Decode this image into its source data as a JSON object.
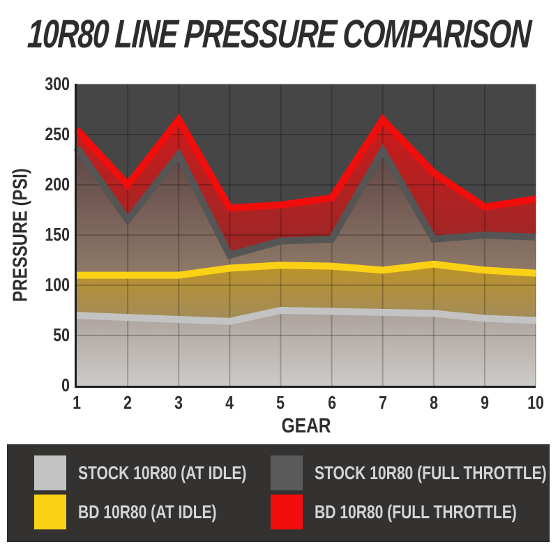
{
  "title": "10R80 LINE PRESSURE COMPARISON",
  "colors": {
    "title_text": "#2d2d2d",
    "plot_bg": "#464646",
    "grid": "rgba(0,0,0,0.22)",
    "axis": "#1f1f1f",
    "tick_text": "#2d2d2d",
    "legend_bg": "#333231",
    "legend_text": "#d4d4d4"
  },
  "chart_data": {
    "type": "area",
    "title": "10R80 LINE PRESSURE COMPARISON",
    "xlabel": "GEAR",
    "ylabel": "PRESSURE (PSI)",
    "x": [
      1,
      2,
      3,
      4,
      5,
      6,
      7,
      8,
      9,
      10
    ],
    "xticks": [
      "1",
      "2",
      "3",
      "4",
      "5",
      "6",
      "7",
      "8",
      "9",
      "10"
    ],
    "ylim": [
      0,
      300
    ],
    "ytick_step": 50,
    "yticks": [
      0,
      50,
      100,
      150,
      200,
      250,
      300
    ],
    "grid": true,
    "legend_position": "bottom",
    "series": [
      {
        "id": "stock-idle",
        "name": "STOCK 10R80 (AT IDLE)",
        "color": "#c3c3c3",
        "fill_top": "#aba19b",
        "fill_bottom": "#cdcac8",
        "values": [
          70,
          68,
          66,
          64,
          75,
          74,
          73,
          72,
          67,
          65
        ]
      },
      {
        "id": "bd-idle",
        "name": "BD 10R80 (AT IDLE)",
        "color": "#fbd116",
        "fill_top": "#bd9226",
        "fill_bottom": "#a18c5c",
        "values": [
          110,
          110,
          110,
          117,
          120,
          119,
          115,
          121,
          115,
          112
        ]
      },
      {
        "id": "stock-full-throttle",
        "name": "STOCK 10R80 (FULL THROTTLE)",
        "color": "#555555",
        "fill_top": "#5e4444",
        "fill_bottom": "#8f7a69",
        "values": [
          237,
          165,
          230,
          130,
          144,
          146,
          234,
          146,
          150,
          148
        ]
      },
      {
        "id": "bd-full-throttle",
        "name": "BD 10R80 (FULL THROTTLE)",
        "color": "#f20d0d",
        "fill_top": "#cc1b1b",
        "fill_bottom": "#9a2828",
        "values": [
          255,
          200,
          265,
          177,
          180,
          187,
          265,
          212,
          178,
          186
        ]
      }
    ]
  },
  "legend": {
    "items": [
      {
        "label": "STOCK 10R80 (AT IDLE)",
        "color": "#c3c3c3"
      },
      {
        "label": "STOCK 10R80 (FULL THROTTLE)",
        "color": "#5a5a5a"
      },
      {
        "label": "BD 10R80 (AT IDLE)",
        "color": "#fbd116"
      },
      {
        "label": "BD 10R80 (FULL THROTTLE)",
        "color": "#f20d0d"
      }
    ]
  }
}
